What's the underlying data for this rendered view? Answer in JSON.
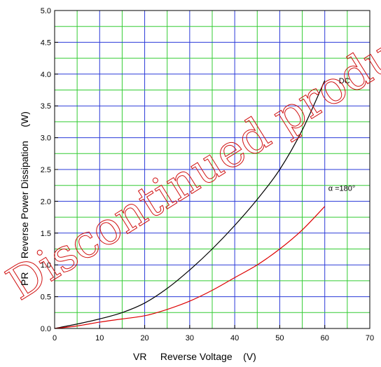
{
  "chart_data": {
    "type": "line",
    "title": "",
    "xlabel": "VR     Reverse Voltage    (V)",
    "ylabel": "PR     Reverse Power Dissipation     (W)",
    "xlim": [
      0,
      70
    ],
    "ylim": [
      0,
      5.0
    ],
    "x_ticks": [
      "0",
      "10",
      "20",
      "30",
      "40",
      "50",
      "60",
      "70"
    ],
    "y_ticks": [
      "0.0",
      "0.5",
      "1.0",
      "1.5",
      "2.0",
      "2.5",
      "3.0",
      "3.5",
      "4.0",
      "4.5",
      "5.0"
    ],
    "grid": true,
    "series": [
      {
        "name": "DC",
        "color": "#000000",
        "x": [
          0,
          5,
          10,
          15,
          20,
          25,
          30,
          35,
          40,
          45,
          50,
          55,
          60
        ],
        "y": [
          0,
          0.07,
          0.15,
          0.25,
          0.4,
          0.63,
          0.92,
          1.25,
          1.62,
          2.03,
          2.5,
          3.12,
          3.9
        ]
      },
      {
        "name": "α =180°",
        "color": "#dd0000",
        "x": [
          0,
          5,
          10,
          15,
          20,
          25,
          30,
          35,
          40,
          45,
          50,
          55,
          60
        ],
        "y": [
          0,
          0.04,
          0.1,
          0.15,
          0.2,
          0.3,
          0.43,
          0.6,
          0.8,
          1.0,
          1.25,
          1.55,
          1.92
        ]
      }
    ]
  },
  "watermark": {
    "text": "Discontinued product."
  }
}
